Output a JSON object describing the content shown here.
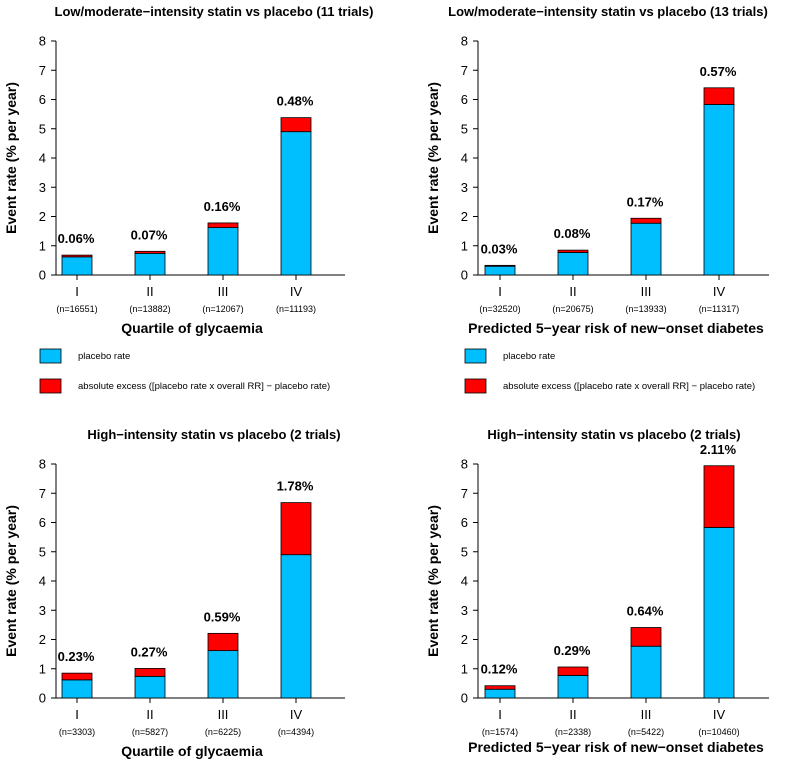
{
  "legend": {
    "base_label": "placebo rate",
    "excess_label": "absolute excess ([placebo rate x overall RR] − placebo rate)"
  },
  "colors": {
    "base": "#00bfff",
    "excess": "#ff0000",
    "axis": "#000000"
  },
  "chart_data": [
    {
      "type": "bar",
      "stacked": true,
      "title": "Low/moderate−intensity statin vs placebo (11 trials)",
      "ylabel": "Event rate (% per year)",
      "xlabel": "Quartile of glycaemia",
      "ylim": [
        0,
        8
      ],
      "yticks": [
        "0",
        "1",
        "2",
        "3",
        "4",
        "5",
        "6",
        "7",
        "8"
      ],
      "categories": [
        "I",
        "II",
        "III",
        "IV"
      ],
      "n_labels": [
        "(n=16551)",
        "(n=13882)",
        "(n=12067)",
        "(n=11193)"
      ],
      "series": [
        {
          "name": "placebo rate",
          "values": [
            0.62,
            0.74,
            1.62,
            4.9
          ]
        },
        {
          "name": "absolute excess",
          "values": [
            0.06,
            0.07,
            0.16,
            0.48
          ]
        }
      ],
      "data_labels": [
        "0.06%",
        "0.07%",
        "0.16%",
        "0.48%"
      ]
    },
    {
      "type": "bar",
      "stacked": true,
      "title": "Low/moderate−intensity statin vs placebo (13 trials)",
      "ylabel": "Event rate (% per year)",
      "xlabel": "Predicted 5−year risk of new−onset diabetes",
      "ylim": [
        0,
        8
      ],
      "yticks": [
        "0",
        "1",
        "2",
        "3",
        "4",
        "5",
        "6",
        "7",
        "8"
      ],
      "categories": [
        "I",
        "II",
        "III",
        "IV"
      ],
      "n_labels": [
        "(n=32520)",
        "(n=20675)",
        "(n=13933)",
        "(n=11317)"
      ],
      "series": [
        {
          "name": "placebo rate",
          "values": [
            0.3,
            0.77,
            1.77,
            5.83
          ]
        },
        {
          "name": "absolute excess",
          "values": [
            0.03,
            0.08,
            0.17,
            0.57
          ]
        }
      ],
      "data_labels": [
        "0.03%",
        "0.08%",
        "0.17%",
        "0.57%"
      ]
    },
    {
      "type": "bar",
      "stacked": true,
      "title": "High−intensity statin vs placebo (2 trials)",
      "ylabel": "Event rate (% per year)",
      "xlabel": "Quartile of glycaemia",
      "ylim": [
        0,
        8
      ],
      "yticks": [
        "0",
        "1",
        "2",
        "3",
        "4",
        "5",
        "6",
        "7",
        "8"
      ],
      "categories": [
        "I",
        "II",
        "III",
        "IV"
      ],
      "n_labels": [
        "(n=3303)",
        "(n=5827)",
        "(n=6225)",
        "(n=4394)"
      ],
      "series": [
        {
          "name": "placebo rate",
          "values": [
            0.62,
            0.74,
            1.62,
            4.9
          ]
        },
        {
          "name": "absolute excess",
          "values": [
            0.23,
            0.27,
            0.59,
            1.78
          ]
        }
      ],
      "data_labels": [
        "0.23%",
        "0.27%",
        "0.59%",
        "1.78%"
      ]
    },
    {
      "type": "bar",
      "stacked": true,
      "title": "High−intensity statin vs placebo (2 trials)",
      "ylabel": "Event rate (% per year)",
      "xlabel": "Predicted 5−year risk of new−onset diabetes",
      "ylim": [
        0,
        8
      ],
      "yticks": [
        "0",
        "1",
        "2",
        "3",
        "4",
        "5",
        "6",
        "7",
        "8"
      ],
      "categories": [
        "I",
        "II",
        "III",
        "IV"
      ],
      "n_labels": [
        "(n=1574)",
        "(n=2338)",
        "(n=5422)",
        "(n=10460)"
      ],
      "series": [
        {
          "name": "placebo rate",
          "values": [
            0.3,
            0.77,
            1.77,
            5.83
          ]
        },
        {
          "name": "absolute excess",
          "values": [
            0.12,
            0.29,
            0.64,
            2.11
          ]
        }
      ],
      "data_labels": [
        "0.12%",
        "0.29%",
        "0.64%",
        "2.11%"
      ]
    }
  ]
}
